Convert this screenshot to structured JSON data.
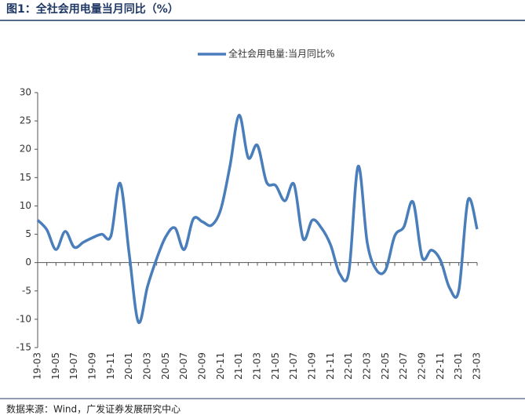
{
  "chart_data": {
    "type": "line",
    "title": "图1：全社会用电量当月同比（%）",
    "source": "数据来源：Wind，广发证券发展研究中心",
    "categories": [
      "19-03",
      null,
      "19-05",
      null,
      "19-07",
      null,
      "19-09",
      null,
      "19-11",
      null,
      "20-01",
      null,
      "20-03",
      null,
      "20-05",
      null,
      "20-07",
      null,
      "20-09",
      null,
      "20-11",
      null,
      "21-01",
      null,
      "21-03",
      null,
      "21-05",
      null,
      "21-07",
      null,
      "21-09",
      null,
      "21-11",
      null,
      "22-01",
      null,
      "22-03",
      null,
      "22-05",
      null,
      "22-07",
      null,
      "22-09",
      null,
      "22-11",
      null,
      "23-01",
      null,
      "23-03"
    ],
    "series": [
      {
        "name": "全社会用电量:当月同比%",
        "color": "#4a7ebb",
        "values": [
          7.5,
          5.8,
          2.3,
          5.5,
          2.7,
          3.6,
          4.4,
          5.0,
          4.7,
          14.0,
          1.5,
          -10.5,
          -4.2,
          0.7,
          4.6,
          6.1,
          2.3,
          7.7,
          7.2,
          6.6,
          9.4,
          17.0,
          26.0,
          18.5,
          20.7,
          14.2,
          13.6,
          10.9,
          13.8,
          4.2,
          7.5,
          6.1,
          3.1,
          -2.0,
          -1.5,
          17.0,
          3.5,
          -1.3,
          -1.3,
          4.7,
          6.3,
          10.7,
          0.9,
          2.2,
          0.4,
          -4.5,
          -4.9,
          11.0,
          5.9
        ]
      }
    ],
    "ylim": [
      -15,
      30
    ],
    "yticks": [
      -15,
      -10,
      -5,
      0,
      5,
      10,
      15,
      20,
      25,
      30
    ],
    "grid": false,
    "legend": "top"
  }
}
